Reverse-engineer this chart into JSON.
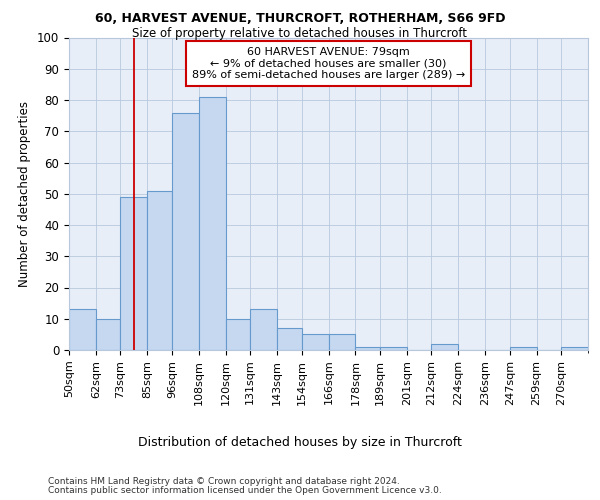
{
  "title1": "60, HARVEST AVENUE, THURCROFT, ROTHERHAM, S66 9FD",
  "title2": "Size of property relative to detached houses in Thurcroft",
  "xlabel": "Distribution of detached houses by size in Thurcroft",
  "ylabel": "Number of detached properties",
  "footnote1": "Contains HM Land Registry data © Crown copyright and database right 2024.",
  "footnote2": "Contains public sector information licensed under the Open Government Licence v3.0.",
  "annotation_line1": "60 HARVEST AVENUE: 79sqm",
  "annotation_line2": "← 9% of detached houses are smaller (30)",
  "annotation_line3": "89% of semi-detached houses are larger (289) →",
  "property_size": 79,
  "bin_edges": [
    50,
    62,
    73,
    85,
    96,
    108,
    120,
    131,
    143,
    154,
    166,
    178,
    189,
    201,
    212,
    224,
    236,
    247,
    259,
    270,
    282
  ],
  "bar_heights": [
    13,
    10,
    49,
    51,
    76,
    81,
    10,
    13,
    7,
    5,
    5,
    1,
    1,
    0,
    2,
    0,
    0,
    1,
    0,
    1
  ],
  "bar_color": "#c5d8f0",
  "bar_edge_color": "#6699cc",
  "vline_color": "#cc0000",
  "vline_x": 79,
  "annotation_box_edge": "#cc0000",
  "background_color": "#e8eef8",
  "grid_color": "#b8c8dc",
  "ylim": [
    0,
    100
  ],
  "yticks": [
    0,
    10,
    20,
    30,
    40,
    50,
    60,
    70,
    80,
    90,
    100
  ]
}
